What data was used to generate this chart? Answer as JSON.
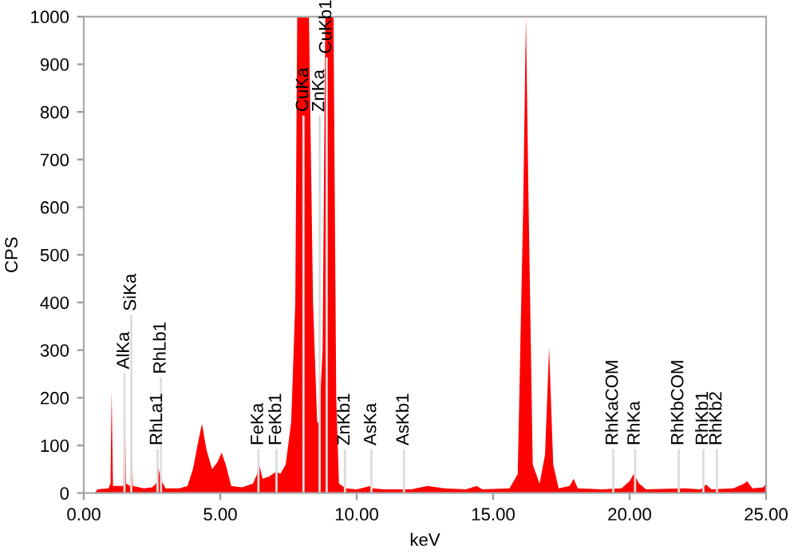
{
  "chart_data": {
    "type": "area",
    "xlabel": "keV",
    "ylabel": "CPS",
    "xlim": [
      0,
      25
    ],
    "ylim": [
      0,
      1000
    ],
    "xticks": [
      {
        "value": 0,
        "label": "0.00"
      },
      {
        "value": 5,
        "label": "5.00"
      },
      {
        "value": 10,
        "label": "10.00"
      },
      {
        "value": 15,
        "label": "15.00"
      },
      {
        "value": 20,
        "label": "20.00"
      },
      {
        "value": 25,
        "label": "25.00"
      }
    ],
    "yticks": [
      {
        "value": 0,
        "label": "0"
      },
      100,
      200,
      300,
      400,
      500,
      600,
      700,
      800,
      900,
      1000
    ],
    "grid": false,
    "legend": false,
    "series": [
      {
        "color": "#ff0000",
        "x": [
          0.4,
          0.5,
          0.9,
          0.98,
          1.02,
          1.07,
          1.45,
          1.49,
          1.55,
          1.7,
          1.74,
          1.8,
          2.2,
          2.5,
          2.65,
          2.72,
          2.85,
          3.0,
          3.5,
          3.8,
          4.0,
          4.2,
          4.33,
          4.5,
          4.7,
          4.9,
          5.05,
          5.2,
          5.4,
          5.8,
          6.2,
          6.35,
          6.42,
          6.55,
          6.8,
          7.05,
          7.2,
          7.4,
          7.6,
          7.75,
          7.82,
          8.25,
          8.4,
          8.55,
          8.62,
          8.75,
          8.85,
          9.15,
          9.25,
          9.35,
          9.6,
          10.0,
          10.5,
          10.6,
          11.0,
          12.0,
          12.6,
          13.2,
          14.0,
          14.4,
          14.6,
          15.6,
          15.9,
          16.1,
          16.2,
          16.3,
          16.45,
          16.7,
          16.9,
          17.05,
          17.2,
          17.4,
          17.8,
          17.95,
          18.1,
          19.0,
          19.7,
          20.0,
          20.15,
          20.35,
          20.6,
          22.0,
          22.6,
          22.8,
          23.0,
          23.8,
          24.2,
          24.3,
          24.5,
          24.9,
          25.0
        ],
        "values": [
          0,
          8,
          10,
          20,
          215,
          15,
          15,
          230,
          20,
          15,
          125,
          15,
          10,
          12,
          20,
          55,
          25,
          10,
          10,
          15,
          50,
          110,
          145,
          90,
          50,
          65,
          85,
          60,
          15,
          12,
          20,
          40,
          62,
          30,
          35,
          45,
          40,
          60,
          150,
          400,
          1000,
          1000,
          400,
          150,
          145,
          300,
          1000,
          1000,
          200,
          20,
          10,
          8,
          15,
          10,
          8,
          8,
          15,
          10,
          8,
          15,
          8,
          10,
          40,
          600,
          1000,
          600,
          60,
          20,
          80,
          305,
          60,
          10,
          15,
          30,
          10,
          8,
          10,
          25,
          40,
          20,
          8,
          10,
          8,
          18,
          8,
          10,
          20,
          25,
          10,
          12,
          20
        ]
      }
    ],
    "ref_lines": [
      {
        "axis": "x",
        "value": 1.49,
        "label": "AlKa",
        "color": "#dddddd"
      },
      {
        "axis": "x",
        "value": 1.74,
        "label": "SiKa",
        "color": "#dddddd"
      },
      {
        "axis": "x",
        "value": 2.7,
        "label": "RhLa1",
        "color": "#dddddd"
      },
      {
        "axis": "x",
        "value": 2.83,
        "label": "RhLb1",
        "color": "#dddddd"
      },
      {
        "axis": "x",
        "value": 6.4,
        "label": "FeKa",
        "color": "#dddddd"
      },
      {
        "axis": "x",
        "value": 7.06,
        "label": "FeKb1",
        "color": "#dddddd"
      },
      {
        "axis": "x",
        "value": 8.05,
        "label": "CuKa",
        "color": "#dddddd"
      },
      {
        "axis": "x",
        "value": 8.64,
        "label": "ZnKa",
        "color": "#dddddd"
      },
      {
        "axis": "x",
        "value": 8.9,
        "label": "CuKb1",
        "color": "#dddddd"
      },
      {
        "axis": "x",
        "value": 9.57,
        "label": "ZnKb1",
        "color": "#dddddd"
      },
      {
        "axis": "x",
        "value": 10.54,
        "label": "AsKa",
        "color": "#dddddd"
      },
      {
        "axis": "x",
        "value": 11.73,
        "label": "AsKb1",
        "color": "#dddddd"
      },
      {
        "axis": "x",
        "value": 19.4,
        "label": "RhKaCOM",
        "color": "#dddddd"
      },
      {
        "axis": "x",
        "value": 20.2,
        "label": "RhKa",
        "color": "#dddddd"
      },
      {
        "axis": "x",
        "value": 21.8,
        "label": "RhKbCOM",
        "color": "#dddddd"
      },
      {
        "axis": "x",
        "value": 22.7,
        "label": "RhKb1",
        "color": "#dddddd"
      },
      {
        "axis": "x",
        "value": 23.2,
        "label": "RhKb2",
        "color": "#dddddd"
      }
    ]
  }
}
